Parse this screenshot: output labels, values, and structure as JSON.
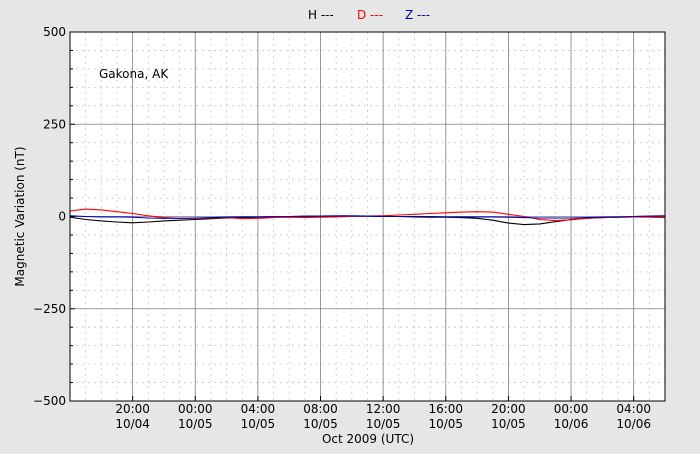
{
  "chart_data": {
    "type": "line",
    "station_label": "Gakona, AK",
    "xlabel": "Oct 2009 (UTC)",
    "ylabel": "Magnetic Variation (nT)",
    "ylim": [
      -500,
      500
    ],
    "yticks": [
      500,
      250,
      0,
      -250,
      -500
    ],
    "ytick_labels": [
      "500",
      "250",
      "0",
      "−250",
      "−500"
    ],
    "xlim": [
      "2009-10-04T16:00",
      "2009-10-06T06:00"
    ],
    "xticks": [
      {
        "t": "2009-10-04T20:00",
        "time": "20:00",
        "date": "10/04"
      },
      {
        "t": "2009-10-05T00:00",
        "time": "00:00",
        "date": "10/05"
      },
      {
        "t": "2009-10-05T04:00",
        "time": "04:00",
        "date": "10/05"
      },
      {
        "t": "2009-10-05T08:00",
        "time": "08:00",
        "date": "10/05"
      },
      {
        "t": "2009-10-05T12:00",
        "time": "12:00",
        "date": "10/05"
      },
      {
        "t": "2009-10-05T16:00",
        "time": "16:00",
        "date": "10/05"
      },
      {
        "t": "2009-10-05T20:00",
        "time": "20:00",
        "date": "10/05"
      },
      {
        "t": "2009-10-06T00:00",
        "time": "00:00",
        "date": "10/06"
      },
      {
        "t": "2009-10-06T04:00",
        "time": "04:00",
        "date": "10/06"
      }
    ],
    "grid": true,
    "legend_position": "top-center",
    "series": [
      {
        "name": "H ---",
        "color": "#000000",
        "points": [
          [
            "2009-10-04T16:00",
            -2
          ],
          [
            "2009-10-04T17:00",
            -8
          ],
          [
            "2009-10-04T18:00",
            -12
          ],
          [
            "2009-10-04T19:00",
            -15
          ],
          [
            "2009-10-04T20:00",
            -17
          ],
          [
            "2009-10-04T21:00",
            -15
          ],
          [
            "2009-10-04T22:00",
            -12
          ],
          [
            "2009-10-04T23:00",
            -10
          ],
          [
            "2009-10-05T00:00",
            -8
          ],
          [
            "2009-10-05T01:00",
            -6
          ],
          [
            "2009-10-05T02:00",
            -4
          ],
          [
            "2009-10-05T03:00",
            -3
          ],
          [
            "2009-10-05T04:00",
            -2
          ],
          [
            "2009-10-05T05:00",
            -1
          ],
          [
            "2009-10-05T06:00",
            -1
          ],
          [
            "2009-10-05T07:00",
            0
          ],
          [
            "2009-10-05T08:00",
            0
          ],
          [
            "2009-10-05T09:00",
            0
          ],
          [
            "2009-10-05T10:00",
            1
          ],
          [
            "2009-10-05T11:00",
            1
          ],
          [
            "2009-10-05T12:00",
            0
          ],
          [
            "2009-10-05T13:00",
            0
          ],
          [
            "2009-10-05T14:00",
            -1
          ],
          [
            "2009-10-05T15:00",
            -2
          ],
          [
            "2009-10-05T16:00",
            -2
          ],
          [
            "2009-10-05T17:00",
            -3
          ],
          [
            "2009-10-05T18:00",
            -5
          ],
          [
            "2009-10-05T19:00",
            -10
          ],
          [
            "2009-10-05T20:00",
            -18
          ],
          [
            "2009-10-05T21:00",
            -22
          ],
          [
            "2009-10-05T22:00",
            -20
          ],
          [
            "2009-10-05T23:00",
            -14
          ],
          [
            "2009-10-06T00:00",
            -8
          ],
          [
            "2009-10-06T01:00",
            -5
          ],
          [
            "2009-10-06T02:00",
            -3
          ],
          [
            "2009-10-06T03:00",
            -2
          ],
          [
            "2009-10-06T04:00",
            -1
          ],
          [
            "2009-10-06T05:00",
            0
          ],
          [
            "2009-10-06T06:00",
            1
          ]
        ]
      },
      {
        "name": "D ---",
        "color": "#ff0000",
        "points": [
          [
            "2009-10-04T16:00",
            15
          ],
          [
            "2009-10-04T17:00",
            20
          ],
          [
            "2009-10-04T18:00",
            18
          ],
          [
            "2009-10-04T19:00",
            13
          ],
          [
            "2009-10-04T20:00",
            8
          ],
          [
            "2009-10-04T21:00",
            2
          ],
          [
            "2009-10-04T22:00",
            -3
          ],
          [
            "2009-10-04T23:00",
            -5
          ],
          [
            "2009-10-05T00:00",
            -5
          ],
          [
            "2009-10-05T01:00",
            -4
          ],
          [
            "2009-10-05T02:00",
            -3
          ],
          [
            "2009-10-05T03:00",
            -6
          ],
          [
            "2009-10-05T04:00",
            -5
          ],
          [
            "2009-10-05T05:00",
            -3
          ],
          [
            "2009-10-05T06:00",
            -2
          ],
          [
            "2009-10-05T07:00",
            -3
          ],
          [
            "2009-10-05T08:00",
            -2
          ],
          [
            "2009-10-05T09:00",
            -1
          ],
          [
            "2009-10-05T10:00",
            0
          ],
          [
            "2009-10-05T11:00",
            1
          ],
          [
            "2009-10-05T12:00",
            2
          ],
          [
            "2009-10-05T13:00",
            4
          ],
          [
            "2009-10-05T14:00",
            6
          ],
          [
            "2009-10-05T15:00",
            8
          ],
          [
            "2009-10-05T16:00",
            10
          ],
          [
            "2009-10-05T17:00",
            12
          ],
          [
            "2009-10-05T18:00",
            13
          ],
          [
            "2009-10-05T19:00",
            12
          ],
          [
            "2009-10-05T20:00",
            6
          ],
          [
            "2009-10-05T21:00",
            0
          ],
          [
            "2009-10-05T22:00",
            -8
          ],
          [
            "2009-10-05T23:00",
            -11
          ],
          [
            "2009-10-06T00:00",
            -9
          ],
          [
            "2009-10-06T01:00",
            -5
          ],
          [
            "2009-10-06T02:00",
            -3
          ],
          [
            "2009-10-06T03:00",
            -2
          ],
          [
            "2009-10-06T04:00",
            -1
          ],
          [
            "2009-10-06T05:00",
            -2
          ],
          [
            "2009-10-06T06:00",
            -3
          ]
        ]
      },
      {
        "name": "Z ---",
        "color": "#0000b4",
        "points": [
          [
            "2009-10-04T16:00",
            2
          ],
          [
            "2009-10-04T17:00",
            0
          ],
          [
            "2009-10-04T18:00",
            -1
          ],
          [
            "2009-10-04T19:00",
            -1
          ],
          [
            "2009-10-04T20:00",
            -2
          ],
          [
            "2009-10-04T21:00",
            -4
          ],
          [
            "2009-10-04T22:00",
            -5
          ],
          [
            "2009-10-04T23:00",
            -5
          ],
          [
            "2009-10-05T00:00",
            -4
          ],
          [
            "2009-10-05T01:00",
            -3
          ],
          [
            "2009-10-05T02:00",
            -2
          ],
          [
            "2009-10-05T03:00",
            -1
          ],
          [
            "2009-10-05T04:00",
            -1
          ],
          [
            "2009-10-05T05:00",
            0
          ],
          [
            "2009-10-05T06:00",
            0
          ],
          [
            "2009-10-05T07:00",
            1
          ],
          [
            "2009-10-05T08:00",
            1
          ],
          [
            "2009-10-05T09:00",
            2
          ],
          [
            "2009-10-05T10:00",
            2
          ],
          [
            "2009-10-05T11:00",
            1
          ],
          [
            "2009-10-05T12:00",
            0
          ],
          [
            "2009-10-05T13:00",
            0
          ],
          [
            "2009-10-05T14:00",
            0
          ],
          [
            "2009-10-05T15:00",
            0
          ],
          [
            "2009-10-05T16:00",
            -1
          ],
          [
            "2009-10-05T17:00",
            -1
          ],
          [
            "2009-10-05T18:00",
            -1
          ],
          [
            "2009-10-05T19:00",
            -1
          ],
          [
            "2009-10-05T20:00",
            -2
          ],
          [
            "2009-10-05T21:00",
            -3
          ],
          [
            "2009-10-05T22:00",
            -4
          ],
          [
            "2009-10-05T23:00",
            -4
          ],
          [
            "2009-10-06T00:00",
            -4
          ],
          [
            "2009-10-06T01:00",
            -3
          ],
          [
            "2009-10-06T02:00",
            -2
          ],
          [
            "2009-10-06T03:00",
            -1
          ],
          [
            "2009-10-06T04:00",
            0
          ],
          [
            "2009-10-06T05:00",
            1
          ],
          [
            "2009-10-06T06:00",
            2
          ]
        ]
      }
    ]
  }
}
